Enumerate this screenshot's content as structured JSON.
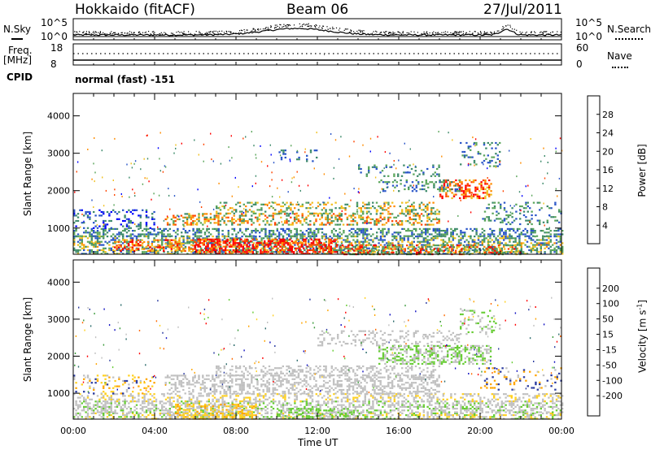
{
  "header": {
    "station": "Hokkaido (fitACF)",
    "beam": "Beam 06",
    "date": "27/Jul/2011"
  },
  "noise_panel": {
    "left_label": "N.Sky",
    "right_label": "N.Search",
    "left_ticks": [
      "10^5",
      "10^0"
    ],
    "right_ticks": [
      "10^5",
      "10^0"
    ]
  },
  "freq_panel": {
    "left_label_1": "Freq.",
    "left_label_2": "[MHz]",
    "right_label": "Nave",
    "left_ticks": [
      "18",
      "8"
    ],
    "right_ticks": [
      "60",
      "0"
    ]
  },
  "cpid": {
    "label": "CPID",
    "value": "normal (fast) -151"
  },
  "colors": {
    "power_scale": [
      "#0000ff",
      "#2a55c8",
      "#3d8a6a",
      "#5aa55a",
      "#f0c020",
      "#ff8c00",
      "#ff4500",
      "#ff0000"
    ],
    "velocity_scale": [
      "#ff0000",
      "#ff6a00",
      "#ffa500",
      "#ffd020",
      "#c0c0c0",
      "#c0c0c0",
      "#66cc33",
      "#3a9a3a",
      "#2a6a6a",
      "#2a3aa0",
      "#1010c0"
    ]
  },
  "chart_data": [
    {
      "type": "heatmap",
      "name": "power",
      "ylabel": "Slant Range [km]",
      "y_ticks": [
        "1000",
        "2000",
        "3000",
        "4000"
      ],
      "ylim": [
        300,
        4600
      ],
      "colorbar_label": "Power [dB]",
      "colorbar_ticks": [
        "4",
        "8",
        "12",
        "16",
        "20",
        "24",
        "28"
      ],
      "clim": [
        0,
        30
      ]
    },
    {
      "type": "heatmap",
      "name": "velocity",
      "ylabel": "Slant Range [km]",
      "y_ticks": [
        "1000",
        "2000",
        "3000",
        "4000"
      ],
      "ylim": [
        300,
        4600
      ],
      "xlabel": "Time UT",
      "x_ticks": [
        "00:00",
        "04:00",
        "08:00",
        "12:00",
        "16:00",
        "20:00",
        "00:00"
      ],
      "colorbar_label": "Velocity [m s",
      "colorbar_unit_sup": "-1",
      "colorbar_label_end": "]",
      "colorbar_ticks": [
        "200",
        "100",
        "50",
        "15",
        "-15",
        "-50",
        "-100",
        "-200"
      ],
      "clim": [
        -250,
        250
      ]
    }
  ]
}
